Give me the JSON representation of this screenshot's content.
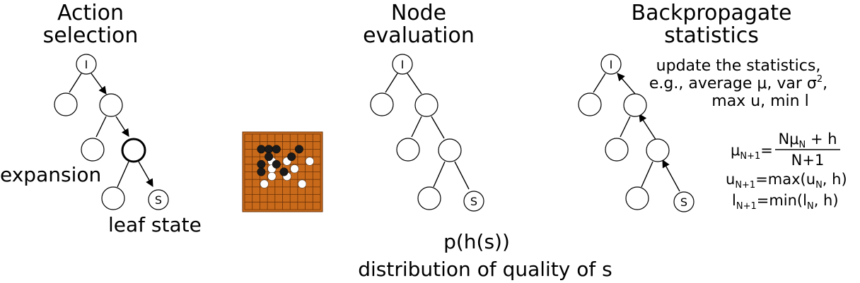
{
  "panels": {
    "selection": {
      "title_line1": "Action",
      "title_line2": "selection",
      "root_label": "I",
      "leaf_label": "S",
      "expansion_label": "expansion",
      "leaf_state_label": "leaf state"
    },
    "evaluation": {
      "title_line1": "Node",
      "title_line2": "evaluation",
      "root_label": "I",
      "leaf_label": "S",
      "distribution_expr": "p(h(s))",
      "distribution_caption": "distribution of quality of s"
    },
    "backprop": {
      "title_line1": "Backpropagate",
      "title_line2": "statistics",
      "root_label": "I",
      "leaf_label": "S",
      "note_line1": "update the statistics,",
      "note_line2_prefix": "e.g., average μ, var σ",
      "note_line2_sup": "2",
      "note_line2_suffix": ",",
      "note_line3": "max u, min l",
      "formulas": {
        "mu_lhs": "μ",
        "mu_lhs_sub": "N+1",
        "mu_eq": "=",
        "mu_num_a": "Nμ",
        "mu_num_sub": "N",
        "mu_num_b": " + h",
        "mu_den": "N+1",
        "u_lhs": "u",
        "u_lhs_sub": "N+1",
        "u_rhs_a": "=max(u",
        "u_rhs_sub": "N",
        "u_rhs_b": ", h)",
        "l_lhs": "l",
        "l_lhs_sub": "N+1",
        "l_rhs_a": "=min(l",
        "l_rhs_sub": "N",
        "l_rhs_b": ", h)"
      }
    }
  },
  "go_board": {
    "board_color": "#c86a1a",
    "grid_color": "#6b3208",
    "black_stone_color": "#1a1a1a",
    "white_stone_color": "#ffffff"
  }
}
